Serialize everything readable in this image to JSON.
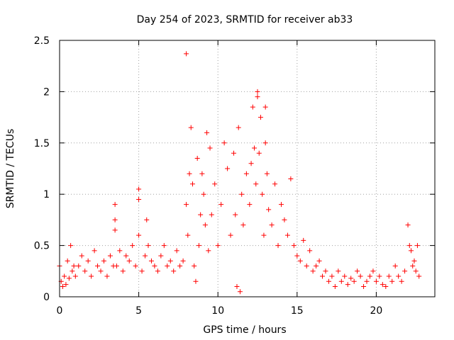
{
  "chart_data": {
    "type": "scatter",
    "title": "Day 254 of 2023, SRMTID for receiver ab33",
    "xlabel": "GPS time / hours",
    "ylabel": "SRMTID / TECUs",
    "xlim": [
      0,
      23.7
    ],
    "ylim": [
      0,
      2.5
    ],
    "xticks": [
      0,
      5,
      10,
      15,
      20
    ],
    "xtick_labels": [
      "0",
      "5",
      "10",
      "15",
      "20"
    ],
    "yticks": [
      0,
      0.5,
      1,
      1.5,
      2,
      2.5
    ],
    "ytick_labels": [
      "0",
      "0.5",
      "1",
      "1.5",
      "2",
      "2.5"
    ],
    "grid": true,
    "marker": "+",
    "marker_color": "#ff0000",
    "series": [
      {
        "name": "SRMTID",
        "x": [
          0.0,
          0.1,
          0.2,
          0.3,
          0.4,
          0.5,
          0.6,
          0.7,
          0.8,
          0.9,
          1.0,
          1.2,
          1.4,
          1.6,
          1.8,
          2.0,
          2.2,
          2.4,
          2.6,
          2.8,
          3.0,
          3.2,
          3.4,
          3.5,
          3.5,
          3.5,
          3.6,
          3.8,
          4.0,
          4.2,
          4.4,
          4.6,
          4.8,
          5.0,
          5.0,
          5.0,
          5.2,
          5.4,
          5.5,
          5.6,
          5.8,
          6.0,
          6.2,
          6.4,
          6.6,
          6.8,
          7.0,
          7.2,
          7.4,
          7.6,
          7.8,
          8.0,
          8.0,
          8.1,
          8.2,
          8.3,
          8.4,
          8.5,
          8.6,
          8.7,
          8.8,
          8.9,
          9.0,
          9.1,
          9.2,
          9.3,
          9.4,
          9.5,
          9.6,
          9.8,
          10.0,
          10.2,
          10.4,
          10.6,
          10.8,
          11.0,
          11.1,
          11.2,
          11.3,
          11.4,
          11.5,
          11.6,
          11.8,
          12.0,
          12.1,
          12.2,
          12.3,
          12.4,
          12.5,
          12.5,
          12.6,
          12.7,
          12.8,
          12.9,
          13.0,
          13.0,
          13.1,
          13.2,
          13.4,
          13.6,
          13.8,
          14.0,
          14.2,
          14.4,
          14.6,
          14.8,
          15.0,
          15.2,
          15.4,
          15.6,
          15.8,
          16.0,
          16.2,
          16.4,
          16.6,
          16.8,
          17.0,
          17.2,
          17.4,
          17.6,
          17.8,
          18.0,
          18.2,
          18.4,
          18.6,
          18.8,
          19.0,
          19.2,
          19.4,
          19.6,
          19.8,
          20.0,
          20.2,
          20.4,
          20.6,
          20.8,
          21.0,
          21.2,
          21.4,
          21.6,
          21.8,
          22.0,
          22.1,
          22.2,
          22.3,
          22.4,
          22.5,
          22.6,
          22.7
        ],
        "y": [
          0.3,
          0.15,
          0.1,
          0.2,
          0.12,
          0.35,
          0.18,
          0.5,
          0.25,
          0.3,
          0.2,
          0.3,
          0.4,
          0.25,
          0.35,
          0.2,
          0.45,
          0.3,
          0.25,
          0.35,
          0.2,
          0.4,
          0.3,
          0.9,
          0.75,
          0.65,
          0.3,
          0.45,
          0.25,
          0.4,
          0.35,
          0.5,
          0.3,
          1.05,
          0.95,
          0.6,
          0.25,
          0.4,
          0.75,
          0.5,
          0.35,
          0.3,
          0.25,
          0.4,
          0.5,
          0.3,
          0.35,
          0.25,
          0.45,
          0.3,
          0.35,
          2.37,
          0.9,
          0.6,
          1.2,
          1.65,
          1.1,
          0.3,
          0.15,
          1.35,
          0.5,
          0.8,
          1.2,
          1.0,
          0.7,
          1.6,
          0.45,
          1.45,
          0.8,
          1.1,
          0.5,
          0.9,
          1.5,
          1.25,
          0.6,
          1.4,
          0.8,
          0.1,
          1.65,
          0.05,
          1.0,
          0.7,
          1.2,
          0.9,
          1.3,
          1.85,
          1.45,
          1.1,
          2.0,
          1.95,
          1.4,
          1.75,
          1.0,
          0.6,
          1.5,
          1.85,
          1.2,
          0.85,
          0.7,
          1.1,
          0.5,
          0.9,
          0.75,
          0.6,
          1.15,
          0.5,
          0.4,
          0.35,
          0.55,
          0.3,
          0.45,
          0.25,
          0.3,
          0.35,
          0.2,
          0.25,
          0.15,
          0.2,
          0.1,
          0.25,
          0.15,
          0.2,
          0.12,
          0.18,
          0.15,
          0.25,
          0.2,
          0.1,
          0.15,
          0.2,
          0.25,
          0.15,
          0.2,
          0.12,
          0.1,
          0.2,
          0.15,
          0.3,
          0.2,
          0.15,
          0.25,
          0.7,
          0.5,
          0.45,
          0.3,
          0.35,
          0.25,
          0.5,
          0.2
        ]
      }
    ]
  }
}
